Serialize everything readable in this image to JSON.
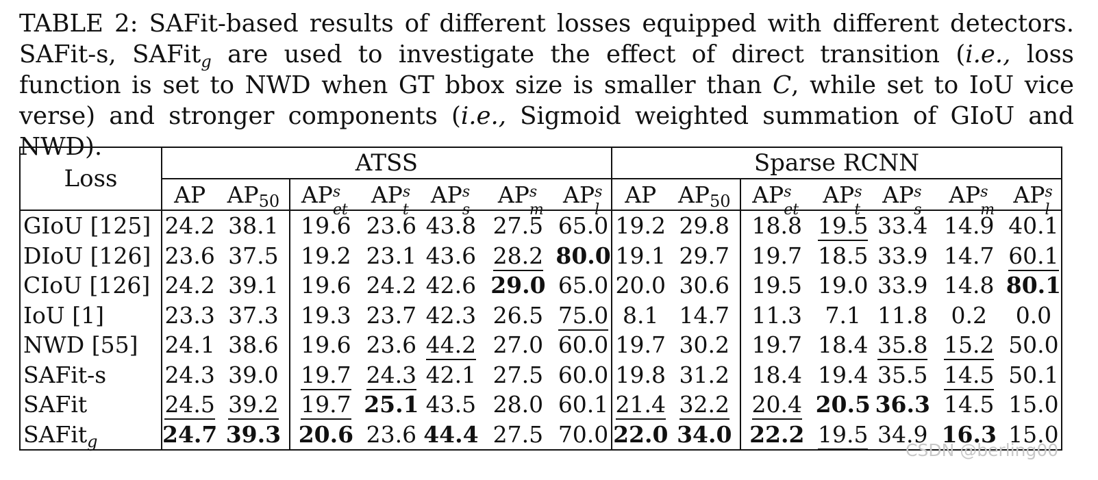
{
  "caption": {
    "lead": "TABLE 2: SAFit-based results of different losses equipped with different detectors. SAFit-s, SAFit",
    "lead_sub": "g",
    "part2": " are used to investigate the effect of direct transition (",
    "ie1": "i.e.,",
    "part3": " loss function is set to NWD when GT bbox size is smaller than ",
    "var_c": "C",
    "part4": ", while set to IoU vice verse) and stronger components (",
    "ie2": "i.e.,",
    "part5": " Sigmoid weighted summation of GIoU and NWD)."
  },
  "table": {
    "loss_header": "Loss",
    "groups": [
      "ATSS",
      "Sparse RCNN"
    ],
    "metric_base": "AP",
    "metric_50": "50",
    "metric_sup": "s",
    "metric_subs": [
      "et",
      "t",
      "s",
      "m",
      "l"
    ],
    "rows": [
      {
        "loss": "GIoU [125]",
        "sub": "",
        "cells": [
          {
            "v": "24.2"
          },
          {
            "v": "38.1"
          },
          {
            "v": "19.6"
          },
          {
            "v": "23.6"
          },
          {
            "v": "43.8"
          },
          {
            "v": "27.5"
          },
          {
            "v": "65.0"
          },
          {
            "v": "19.2"
          },
          {
            "v": "29.8"
          },
          {
            "v": "18.8"
          },
          {
            "v": "19.5",
            "u": true
          },
          {
            "v": "33.4"
          },
          {
            "v": "14.9"
          },
          {
            "v": "40.1"
          }
        ]
      },
      {
        "loss": "DIoU [126]",
        "sub": "",
        "cells": [
          {
            "v": "23.6"
          },
          {
            "v": "37.5"
          },
          {
            "v": "19.2"
          },
          {
            "v": "23.1"
          },
          {
            "v": "43.6"
          },
          {
            "v": "28.2",
            "u": true
          },
          {
            "v": "80.0",
            "b": true
          },
          {
            "v": "19.1"
          },
          {
            "v": "29.7"
          },
          {
            "v": "19.7"
          },
          {
            "v": "18.5"
          },
          {
            "v": "33.9"
          },
          {
            "v": "14.7"
          },
          {
            "v": "60.1",
            "u": true
          }
        ]
      },
      {
        "loss": "CIoU [126]",
        "sub": "",
        "cells": [
          {
            "v": "24.2"
          },
          {
            "v": "39.1"
          },
          {
            "v": "19.6"
          },
          {
            "v": "24.2"
          },
          {
            "v": "42.6"
          },
          {
            "v": "29.0",
            "b": true
          },
          {
            "v": "65.0"
          },
          {
            "v": "20.0"
          },
          {
            "v": "30.6"
          },
          {
            "v": "19.5"
          },
          {
            "v": "19.0"
          },
          {
            "v": "33.9"
          },
          {
            "v": "14.8"
          },
          {
            "v": "80.1",
            "b": true
          }
        ]
      },
      {
        "loss": "IoU [1]",
        "sub": "",
        "cells": [
          {
            "v": "23.3"
          },
          {
            "v": "37.3"
          },
          {
            "v": "19.3"
          },
          {
            "v": "23.7"
          },
          {
            "v": "42.3"
          },
          {
            "v": "26.5"
          },
          {
            "v": "75.0",
            "u": true
          },
          {
            "v": "8.1"
          },
          {
            "v": "14.7"
          },
          {
            "v": "11.3"
          },
          {
            "v": "7.1"
          },
          {
            "v": "11.8"
          },
          {
            "v": "0.2"
          },
          {
            "v": "0.0"
          }
        ]
      },
      {
        "loss": "NWD [55]",
        "sub": "",
        "cells": [
          {
            "v": "24.1"
          },
          {
            "v": "38.6"
          },
          {
            "v": "19.6"
          },
          {
            "v": "23.6"
          },
          {
            "v": "44.2",
            "u": true
          },
          {
            "v": "27.0"
          },
          {
            "v": "60.0"
          },
          {
            "v": "19.7"
          },
          {
            "v": "30.2"
          },
          {
            "v": "19.7"
          },
          {
            "v": "18.4"
          },
          {
            "v": "35.8",
            "u": true
          },
          {
            "v": "15.2",
            "u": true
          },
          {
            "v": "50.0"
          }
        ]
      },
      {
        "loss": "SAFit-s",
        "sub": "",
        "cells": [
          {
            "v": "24.3"
          },
          {
            "v": "39.0"
          },
          {
            "v": "19.7",
            "u": true
          },
          {
            "v": "24.3",
            "u": true
          },
          {
            "v": "42.1"
          },
          {
            "v": "27.5"
          },
          {
            "v": "60.0"
          },
          {
            "v": "19.8"
          },
          {
            "v": "31.2"
          },
          {
            "v": "18.4"
          },
          {
            "v": "19.4"
          },
          {
            "v": "35.5"
          },
          {
            "v": "14.5",
            "u": true
          },
          {
            "v": "50.1"
          }
        ]
      },
      {
        "loss": "SAFit",
        "sub": "",
        "cells": [
          {
            "v": "24.5",
            "u": true
          },
          {
            "v": "39.2",
            "u": true
          },
          {
            "v": "19.7",
            "u": true
          },
          {
            "v": "25.1",
            "b": true
          },
          {
            "v": "43.5"
          },
          {
            "v": "28.0"
          },
          {
            "v": "60.1"
          },
          {
            "v": "21.4",
            "u": true
          },
          {
            "v": "32.2",
            "u": true
          },
          {
            "v": "20.4",
            "u": true
          },
          {
            "v": "20.5",
            "b": true
          },
          {
            "v": "36.3",
            "b": true
          },
          {
            "v": "14.5"
          },
          {
            "v": "15.0"
          }
        ]
      },
      {
        "loss": "SAFit",
        "sub": "g",
        "cells": [
          {
            "v": "24.7",
            "b": true
          },
          {
            "v": "39.3",
            "b": true
          },
          {
            "v": "20.6",
            "b": true
          },
          {
            "v": "23.6"
          },
          {
            "v": "44.4",
            "b": true
          },
          {
            "v": "27.5"
          },
          {
            "v": "70.0"
          },
          {
            "v": "22.0",
            "b": true
          },
          {
            "v": "34.0",
            "b": true
          },
          {
            "v": "22.2",
            "b": true
          },
          {
            "v": "19.5",
            "u": true
          },
          {
            "v": "34.9"
          },
          {
            "v": "16.3",
            "b": true
          },
          {
            "v": "15.0"
          }
        ]
      }
    ]
  },
  "watermark": "CSDN @berling00"
}
